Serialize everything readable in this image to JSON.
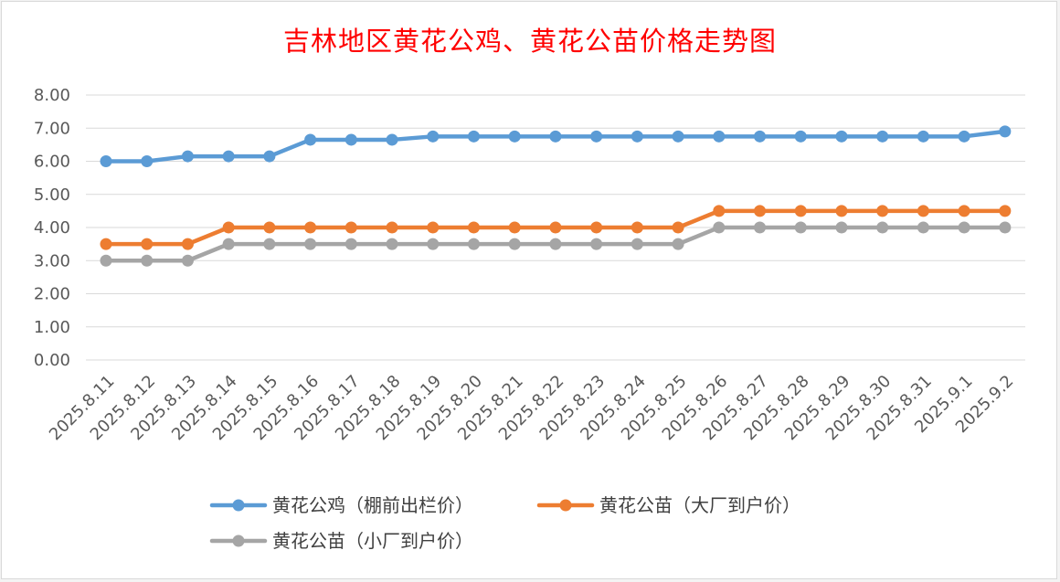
{
  "chart_data": {
    "type": "line",
    "title": "吉林地区黄花公鸡、黄花公苗价格走势图",
    "xlabel": "",
    "ylabel": "",
    "ylim": [
      0,
      8
    ],
    "ytick_step": 1,
    "ytick_labels": [
      "0.00",
      "1.00",
      "2.00",
      "3.00",
      "4.00",
      "5.00",
      "6.00",
      "7.00",
      "8.00"
    ],
    "grid": true,
    "legend_position": "bottom",
    "x": [
      "2025.8.11",
      "2025.8.12",
      "2025.8.13",
      "2025.8.14",
      "2025.8.15",
      "2025.8.16",
      "2025.8.17",
      "2025.8.18",
      "2025.8.19",
      "2025.8.20",
      "2025.8.21",
      "2025.8.22",
      "2025.8.23",
      "2025.8.24",
      "2025.8.25",
      "2025.8.26",
      "2025.8.27",
      "2025.8.28",
      "2025.8.29",
      "2025.8.30",
      "2025.8.31",
      "2025.9.1",
      "2025.9.2"
    ],
    "series": [
      {
        "name": "黄花公鸡（棚前出栏价）",
        "color": "#5b9bd5",
        "values": [
          6.0,
          6.0,
          6.15,
          6.15,
          6.15,
          6.65,
          6.65,
          6.65,
          6.75,
          6.75,
          6.75,
          6.75,
          6.75,
          6.75,
          6.75,
          6.75,
          6.75,
          6.75,
          6.75,
          6.75,
          6.75,
          6.75,
          6.9
        ]
      },
      {
        "name": "黄花公苗（大厂到户价）",
        "color": "#ed7d31",
        "values": [
          3.5,
          3.5,
          3.5,
          4.0,
          4.0,
          4.0,
          4.0,
          4.0,
          4.0,
          4.0,
          4.0,
          4.0,
          4.0,
          4.0,
          4.0,
          4.5,
          4.5,
          4.5,
          4.5,
          4.5,
          4.5,
          4.5,
          4.5
        ]
      },
      {
        "name": "黄花公苗（小厂到户价）",
        "color": "#a5a5a5",
        "values": [
          3.0,
          3.0,
          3.0,
          3.5,
          3.5,
          3.5,
          3.5,
          3.5,
          3.5,
          3.5,
          3.5,
          3.5,
          3.5,
          3.5,
          3.5,
          4.0,
          4.0,
          4.0,
          4.0,
          4.0,
          4.0,
          4.0,
          4.0
        ]
      }
    ],
    "gridline_color": "#d9d9d9"
  }
}
